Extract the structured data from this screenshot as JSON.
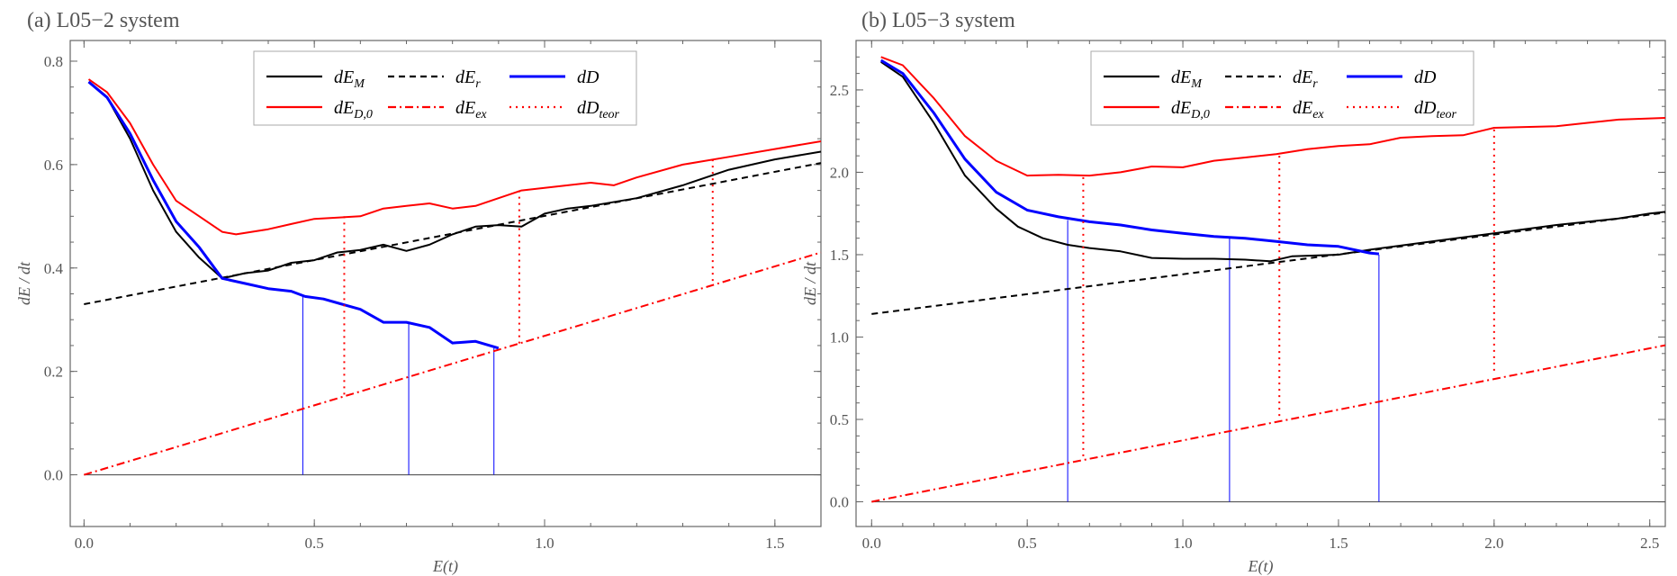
{
  "chart_data": [
    {
      "type": "line",
      "title": "(a) L05−2 system",
      "xlabel": "E(t)",
      "ylabel": "dE / dt",
      "xlim": [
        -0.03,
        1.6
      ],
      "ylim": [
        -0.1,
        0.84
      ],
      "xticks": [
        "0.0",
        "0.5",
        "1.0",
        "1.5"
      ],
      "yticks": [
        "0.0",
        "0.2",
        "0.4",
        "0.6",
        "0.8"
      ],
      "legend_position": "top-center",
      "series": [
        {
          "name": "dE_M",
          "label": "dE",
          "sub": "M",
          "color": "#000000",
          "style": "solid",
          "points": [
            [
              0.01,
              0.76
            ],
            [
              0.05,
              0.73
            ],
            [
              0.1,
              0.65
            ],
            [
              0.15,
              0.55
            ],
            [
              0.2,
              0.47
            ],
            [
              0.25,
              0.42
            ],
            [
              0.3,
              0.38
            ],
            [
              0.35,
              0.39
            ],
            [
              0.4,
              0.395
            ],
            [
              0.45,
              0.41
            ],
            [
              0.5,
              0.415
            ],
            [
              0.55,
              0.43
            ],
            [
              0.6,
              0.435
            ],
            [
              0.65,
              0.445
            ],
            [
              0.7,
              0.433
            ],
            [
              0.75,
              0.445
            ],
            [
              0.8,
              0.465
            ],
            [
              0.85,
              0.48
            ],
            [
              0.9,
              0.483
            ],
            [
              0.95,
              0.48
            ],
            [
              1.0,
              0.505
            ],
            [
              1.05,
              0.515
            ],
            [
              1.1,
              0.52
            ],
            [
              1.2,
              0.535
            ],
            [
              1.3,
              0.56
            ],
            [
              1.4,
              0.59
            ],
            [
              1.5,
              0.61
            ],
            [
              1.6,
              0.625
            ]
          ]
        },
        {
          "name": "dE_r",
          "label": "dE",
          "sub": "r",
          "color": "#000000",
          "style": "dashed",
          "points": [
            [
              0,
              0.33
            ],
            [
              1.6,
              0.603
            ]
          ]
        },
        {
          "name": "dD",
          "label": "dD",
          "sub": "",
          "color": "#0000ff",
          "style": "solid",
          "points": [
            [
              0.01,
              0.76
            ],
            [
              0.05,
              0.73
            ],
            [
              0.1,
              0.66
            ],
            [
              0.15,
              0.57
            ],
            [
              0.2,
              0.49
            ],
            [
              0.25,
              0.44
            ],
            [
              0.3,
              0.38
            ],
            [
              0.35,
              0.37
            ],
            [
              0.4,
              0.36
            ],
            [
              0.45,
              0.355
            ],
            [
              0.48,
              0.345
            ],
            [
              0.52,
              0.34
            ],
            [
              0.56,
              0.33
            ],
            [
              0.6,
              0.32
            ],
            [
              0.65,
              0.295
            ],
            [
              0.7,
              0.295
            ],
            [
              0.75,
              0.285
            ],
            [
              0.8,
              0.255
            ],
            [
              0.85,
              0.258
            ],
            [
              0.9,
              0.245
            ]
          ]
        },
        {
          "name": "dE_D0",
          "label": "dE",
          "sub": "D,0",
          "color": "#ff0000",
          "style": "solid",
          "points": [
            [
              0.01,
              0.765
            ],
            [
              0.05,
              0.74
            ],
            [
              0.1,
              0.68
            ],
            [
              0.15,
              0.6
            ],
            [
              0.2,
              0.53
            ],
            [
              0.25,
              0.5
            ],
            [
              0.3,
              0.47
            ],
            [
              0.33,
              0.465
            ],
            [
              0.4,
              0.475
            ],
            [
              0.45,
              0.485
            ],
            [
              0.5,
              0.495
            ],
            [
              0.6,
              0.5
            ],
            [
              0.65,
              0.515
            ],
            [
              0.7,
              0.52
            ],
            [
              0.75,
              0.525
            ],
            [
              0.8,
              0.515
            ],
            [
              0.85,
              0.52
            ],
            [
              0.9,
              0.535
            ],
            [
              0.95,
              0.55
            ],
            [
              1.0,
              0.555
            ],
            [
              1.05,
              0.56
            ],
            [
              1.1,
              0.565
            ],
            [
              1.15,
              0.56
            ],
            [
              1.2,
              0.575
            ],
            [
              1.3,
              0.6
            ],
            [
              1.4,
              0.615
            ],
            [
              1.5,
              0.63
            ],
            [
              1.6,
              0.645
            ]
          ]
        },
        {
          "name": "dE_ex",
          "label": "dE",
          "sub": "ex",
          "color": "#ff0000",
          "style": "dashdot",
          "points": [
            [
              0,
              0
            ],
            [
              1.6,
              0.43
            ]
          ]
        },
        {
          "name": "dD_teor",
          "label": "dD",
          "sub": "teor",
          "color": "#ff0000",
          "style": "dotted",
          "segments": [
            [
              [
                0.565,
                0.5
              ],
              [
                0.565,
                0.152
              ]
            ],
            [
              [
                0.945,
                0.55
              ],
              [
                0.945,
                0.254
              ]
            ],
            [
              [
                1.365,
                0.61
              ],
              [
                1.365,
                0.367
              ]
            ]
          ]
        }
      ],
      "markers": {
        "color": "#0000ff",
        "segments": [
          [
            [
              0.475,
              0
            ],
            [
              0.475,
              0.345
            ]
          ],
          [
            [
              0.705,
              0
            ],
            [
              0.705,
              0.295
            ]
          ],
          [
            [
              0.89,
              0
            ],
            [
              0.89,
              0.245
            ]
          ]
        ]
      }
    },
    {
      "type": "line",
      "title": "(b) L05−3 system",
      "xlabel": "E(t)",
      "ylabel": "dE / dt",
      "xlim": [
        -0.05,
        2.55
      ],
      "ylim": [
        -0.15,
        2.8
      ],
      "xticks": [
        "0.0",
        "0.5",
        "1.0",
        "1.5",
        "2.0",
        "2.5"
      ],
      "yticks": [
        "0.0",
        "0.5",
        "1.0",
        "1.5",
        "2.0",
        "2.5"
      ],
      "legend_position": "top-center",
      "series": [
        {
          "name": "dE_M",
          "label": "dE",
          "sub": "M",
          "color": "#000000",
          "style": "solid",
          "points": [
            [
              0.03,
              2.67
            ],
            [
              0.1,
              2.58
            ],
            [
              0.2,
              2.3
            ],
            [
              0.3,
              1.98
            ],
            [
              0.4,
              1.78
            ],
            [
              0.47,
              1.67
            ],
            [
              0.55,
              1.6
            ],
            [
              0.63,
              1.56
            ],
            [
              0.7,
              1.54
            ],
            [
              0.8,
              1.52
            ],
            [
              0.9,
              1.48
            ],
            [
              1.0,
              1.475
            ],
            [
              1.1,
              1.475
            ],
            [
              1.2,
              1.47
            ],
            [
              1.28,
              1.46
            ],
            [
              1.35,
              1.49
            ],
            [
              1.5,
              1.5
            ],
            [
              1.6,
              1.53
            ],
            [
              1.8,
              1.58
            ],
            [
              2.0,
              1.63
            ],
            [
              2.2,
              1.68
            ],
            [
              2.4,
              1.72
            ],
            [
              2.5,
              1.75
            ],
            [
              2.55,
              1.76
            ]
          ]
        },
        {
          "name": "dE_r",
          "label": "dE",
          "sub": "r",
          "color": "#000000",
          "style": "dashed",
          "points": [
            [
              0,
              1.14
            ],
            [
              2.55,
              1.755
            ]
          ]
        },
        {
          "name": "dD",
          "label": "dD",
          "sub": "",
          "color": "#0000ff",
          "style": "solid",
          "points": [
            [
              0.03,
              2.68
            ],
            [
              0.1,
              2.6
            ],
            [
              0.2,
              2.36
            ],
            [
              0.3,
              2.08
            ],
            [
              0.4,
              1.88
            ],
            [
              0.5,
              1.77
            ],
            [
              0.6,
              1.73
            ],
            [
              0.7,
              1.7
            ],
            [
              0.8,
              1.68
            ],
            [
              0.9,
              1.65
            ],
            [
              1.0,
              1.63
            ],
            [
              1.1,
              1.61
            ],
            [
              1.2,
              1.6
            ],
            [
              1.3,
              1.58
            ],
            [
              1.4,
              1.56
            ],
            [
              1.5,
              1.55
            ],
            [
              1.6,
              1.51
            ],
            [
              1.63,
              1.505
            ]
          ]
        },
        {
          "name": "dE_D0",
          "label": "dE",
          "sub": "D,0",
          "color": "#ff0000",
          "style": "solid",
          "points": [
            [
              0.03,
              2.7
            ],
            [
              0.1,
              2.65
            ],
            [
              0.2,
              2.45
            ],
            [
              0.3,
              2.22
            ],
            [
              0.4,
              2.07
            ],
            [
              0.5,
              1.98
            ],
            [
              0.6,
              1.985
            ],
            [
              0.7,
              1.98
            ],
            [
              0.8,
              2.0
            ],
            [
              0.9,
              2.035
            ],
            [
              1.0,
              2.03
            ],
            [
              1.1,
              2.07
            ],
            [
              1.2,
              2.09
            ],
            [
              1.3,
              2.11
            ],
            [
              1.4,
              2.14
            ],
            [
              1.5,
              2.16
            ],
            [
              1.6,
              2.17
            ],
            [
              1.7,
              2.21
            ],
            [
              1.8,
              2.22
            ],
            [
              1.9,
              2.225
            ],
            [
              2.0,
              2.27
            ],
            [
              2.2,
              2.28
            ],
            [
              2.3,
              2.3
            ],
            [
              2.4,
              2.32
            ],
            [
              2.55,
              2.33
            ]
          ]
        },
        {
          "name": "dE_ex",
          "label": "dE",
          "sub": "ex",
          "color": "#ff0000",
          "style": "dashdot",
          "points": [
            [
              0,
              0
            ],
            [
              2.55,
              0.95
            ]
          ]
        },
        {
          "name": "dD_teor",
          "label": "dD",
          "sub": "teor",
          "color": "#ff0000",
          "style": "dotted",
          "segments": [
            [
              [
                0.68,
                1.97
              ],
              [
                0.68,
                0.27
              ]
            ],
            [
              [
                1.31,
                2.1
              ],
              [
                1.31,
                0.5
              ]
            ],
            [
              [
                2.0,
                2.26
              ],
              [
                2.0,
                0.77
              ]
            ]
          ]
        }
      ],
      "markers": {
        "color": "#0000ff",
        "segments": [
          [
            [
              0.63,
              0
            ],
            [
              0.63,
              1.71
            ]
          ],
          [
            [
              1.15,
              0
            ],
            [
              1.15,
              1.6
            ]
          ],
          [
            [
              1.63,
              0
            ],
            [
              1.63,
              1.5
            ]
          ]
        ]
      }
    }
  ]
}
